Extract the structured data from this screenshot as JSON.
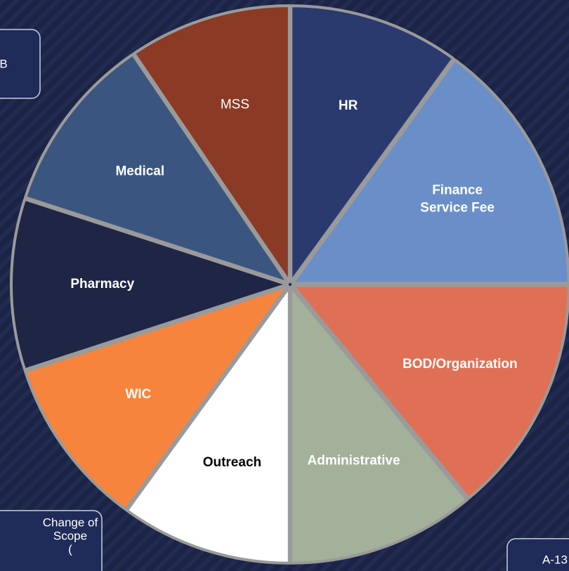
{
  "chart_data": {
    "type": "pie",
    "categories": [
      "HR",
      "Finance Service Fee",
      "BOD/Organization",
      "Administrative",
      "Outreach",
      "WIC",
      "Pharmacy",
      "Medical",
      "MSS"
    ],
    "values": [
      10,
      15,
      14,
      11,
      10,
      10,
      10,
      10.5,
      9.5
    ],
    "colors": [
      "#2b3a6e",
      "#6a8fc8",
      "#e07055",
      "#a3b09a",
      "#ffffff",
      "#f7843c",
      "#1e2545",
      "#3a5680",
      "#8b3a25"
    ],
    "label_colors": [
      "#ffffff",
      "#ffffff",
      "#ffffff",
      "#ffffff",
      "#000000",
      "#ffffff",
      "#ffffff",
      "#ffffff",
      "#ffffff"
    ]
  },
  "boxes": {
    "top_left": "B",
    "bottom_left": [
      "Change of",
      "Scope",
      "("
    ],
    "bottom_right": "A-13"
  }
}
